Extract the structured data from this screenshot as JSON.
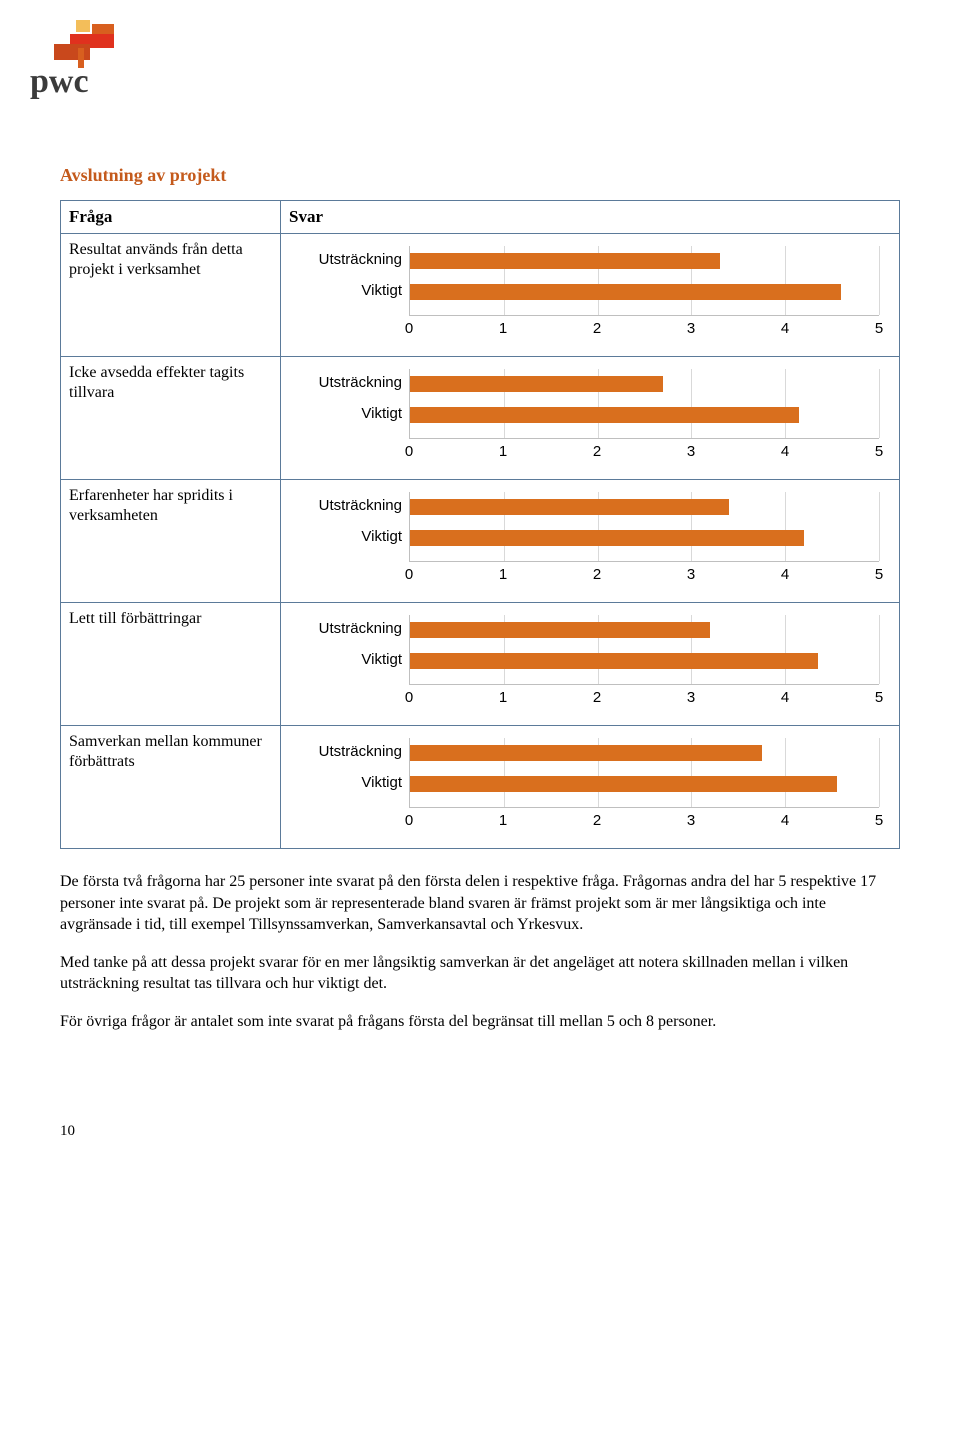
{
  "section_title": "Avslutning av projekt",
  "table": {
    "head_q": "Fråga",
    "head_a": "Svar"
  },
  "chart_defaults": {
    "categories": [
      "Utsträckning",
      "Viktigt"
    ],
    "xmin": 0,
    "xmax": 5,
    "xtick_step": 1,
    "bar_color": "#d96f1e",
    "grid_color": "#d9d9d9",
    "axis_color": "#bfbfbf",
    "label_fontsize": 15,
    "tick_fontsize": 15,
    "font_family": "Arial"
  },
  "rows": [
    {
      "question": "Resultat används från detta projekt i verksamhet",
      "values": [
        3.3,
        4.6
      ]
    },
    {
      "question": "Icke avsedda effekter tagits tillvara",
      "values": [
        2.7,
        4.15
      ]
    },
    {
      "question": "Erfarenheter har spridits i verksamheten",
      "values": [
        3.4,
        4.2
      ]
    },
    {
      "question": "Lett till förbättringar",
      "values": [
        3.2,
        4.35
      ]
    },
    {
      "question": "Samverkan mellan kommuner förbättrats",
      "values": [
        3.75,
        4.55
      ]
    }
  ],
  "paragraphs": [
    "De första två frågorna har 25 personer inte svarat på den första delen i respektive fråga. Frågornas andra del har 5 respektive 17 personer inte svarat på. De projekt som är representerade bland svaren är främst projekt som är mer långsiktiga och inte avgränsade i tid, till exempel Tillsynssamverkan, Samverkansavtal och Yrkesvux.",
    "Med tanke på att dessa projekt svarar för en mer långsiktig samverkan är det angeläget att notera skillnaden mellan i vilken utsträckning resultat tas tillvara och hur viktigt det.",
    "För övriga frågor är antalet som inte svarat på frågans första del begränsat till mellan 5 och 8 personer."
  ],
  "page_number": "10"
}
